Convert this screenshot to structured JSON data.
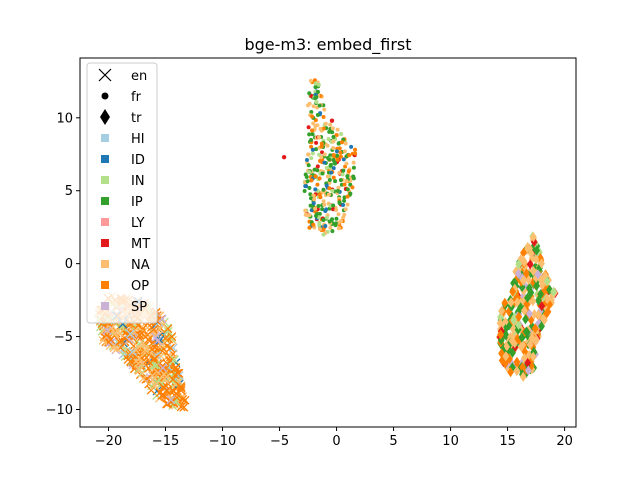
{
  "chart_data": {
    "type": "scatter",
    "title": "bge-m3: embed_first",
    "xlabel": "",
    "ylabel": "",
    "xlim": [
      -22.5,
      21.0
    ],
    "ylim": [
      -11.2,
      14.1
    ],
    "xticks": [
      -20,
      -15,
      -10,
      -5,
      0,
      5,
      10,
      15,
      20
    ],
    "xtick_labels": [
      "−20",
      "−15",
      "−10",
      "−5",
      "0",
      "5",
      "10",
      "15",
      "20"
    ],
    "yticks": [
      -10,
      -5,
      0,
      5,
      10
    ],
    "ytick_labels": [
      "−10",
      "−5",
      "0",
      "5",
      "10"
    ],
    "grid": false,
    "legend_position": "upper-left",
    "marker_legend": [
      {
        "label": "en",
        "marker": "x"
      },
      {
        "label": "fr",
        "marker": "dot"
      },
      {
        "label": "tr",
        "marker": "diamond"
      }
    ],
    "color_legend": [
      {
        "label": "HI",
        "color": "#a6cee3"
      },
      {
        "label": "ID",
        "color": "#1f78b4"
      },
      {
        "label": "IN",
        "color": "#b2df8a"
      },
      {
        "label": "IP",
        "color": "#33a02c"
      },
      {
        "label": "LY",
        "color": "#fb9a99"
      },
      {
        "label": "MT",
        "color": "#e31a1c"
      },
      {
        "label": "NA",
        "color": "#fdbf6f"
      },
      {
        "label": "OP",
        "color": "#ff7f00"
      },
      {
        "label": "SP",
        "color": "#cab2d6"
      }
    ],
    "clusters": [
      {
        "language": "en",
        "marker": "x",
        "polygon": [
          [
            -21.0,
            -3.5
          ],
          [
            -20.0,
            -2.2
          ],
          [
            -18.0,
            -2.3
          ],
          [
            -16.0,
            -3.0
          ],
          [
            -14.5,
            -4.5
          ],
          [
            -14.0,
            -7.0
          ],
          [
            -13.2,
            -9.3
          ],
          [
            -13.4,
            -10.1
          ],
          [
            -14.8,
            -9.8
          ],
          [
            -16.5,
            -8.5
          ],
          [
            -18.5,
            -6.4
          ],
          [
            -20.5,
            -5.3
          ]
        ],
        "count": 480,
        "color_weights": {
          "OP": 0.5,
          "NA": 0.25,
          "IN": 0.12,
          "ID": 0.05,
          "SP": 0.05,
          "HI": 0.03
        }
      },
      {
        "language": "fr",
        "marker": "dot",
        "polygon": [
          [
            -2.2,
            13.0
          ],
          [
            -1.2,
            12.0
          ],
          [
            -1.0,
            10.0
          ],
          [
            0.5,
            9.0
          ],
          [
            1.7,
            7.8
          ],
          [
            1.5,
            5.5
          ],
          [
            0.8,
            3.5
          ],
          [
            0.5,
            2.5
          ],
          [
            -1.0,
            1.9
          ],
          [
            -2.5,
            2.5
          ],
          [
            -3.0,
            4.5
          ],
          [
            -3.0,
            6.5
          ],
          [
            -2.3,
            8.0
          ],
          [
            -2.6,
            10.5
          ]
        ],
        "count": 380,
        "color_weights": {
          "IP": 0.35,
          "NA": 0.25,
          "OP": 0.2,
          "IN": 0.1,
          "ID": 0.06,
          "MT": 0.04
        }
      },
      {
        "language": "tr",
        "marker": "diamond",
        "polygon": [
          [
            17.2,
            2.7
          ],
          [
            18.0,
            0.0
          ],
          [
            19.2,
            -2.0
          ],
          [
            18.2,
            -4.0
          ],
          [
            17.5,
            -7.0
          ],
          [
            16.3,
            -8.2
          ],
          [
            14.5,
            -7.0
          ],
          [
            14.2,
            -4.5
          ],
          [
            14.3,
            -3.5
          ],
          [
            15.5,
            -1.0
          ]
        ],
        "count": 340,
        "color_weights": {
          "NA": 0.35,
          "IP": 0.25,
          "OP": 0.2,
          "MT": 0.08,
          "SP": 0.07,
          "IN": 0.05
        }
      }
    ],
    "outliers": [
      {
        "x": -4.6,
        "y": 7.3,
        "marker": "dot",
        "category": "MT"
      },
      {
        "x": -0.4,
        "y": 9.8,
        "marker": "dot",
        "category": "MT"
      }
    ]
  }
}
